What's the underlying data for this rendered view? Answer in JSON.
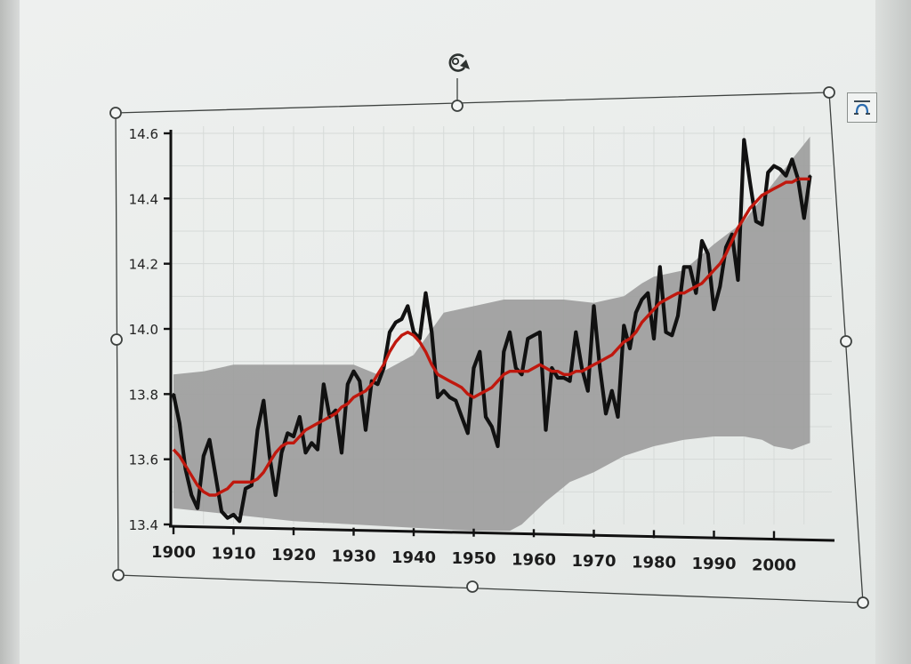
{
  "icons": {
    "rotate_handle": "rotate-icon",
    "layout_options": "layout-options-icon"
  },
  "colors": {
    "annual_series": "#111111",
    "smoothed_series": "#c0180e",
    "uncertainty_band": "#9c9c9c",
    "selection_frame": "#3d413f"
  },
  "chart_data": {
    "type": "line",
    "title": "",
    "xlabel": "",
    "ylabel": "",
    "xlim": [
      1900,
      2006
    ],
    "ylim": [
      13.4,
      14.6
    ],
    "grid": true,
    "legend": "none",
    "x_ticks": [
      "1900",
      "1910",
      "1920",
      "1930",
      "1940",
      "1950",
      "1960",
      "1970",
      "1980",
      "1990",
      "2000"
    ],
    "y_ticks": [
      "13.4",
      "13.6",
      "13.8",
      "14.0",
      "14.2",
      "14.4",
      "14.6"
    ],
    "x": [
      1900,
      1901,
      1902,
      1903,
      1904,
      1905,
      1906,
      1907,
      1908,
      1909,
      1910,
      1911,
      1912,
      1913,
      1914,
      1915,
      1916,
      1917,
      1918,
      1919,
      1920,
      1921,
      1922,
      1923,
      1924,
      1925,
      1926,
      1927,
      1928,
      1929,
      1930,
      1931,
      1932,
      1933,
      1934,
      1935,
      1936,
      1937,
      1938,
      1939,
      1940,
      1941,
      1942,
      1943,
      1944,
      1945,
      1946,
      1947,
      1948,
      1949,
      1950,
      1951,
      1952,
      1953,
      1954,
      1955,
      1956,
      1957,
      1958,
      1959,
      1960,
      1961,
      1962,
      1963,
      1964,
      1965,
      1966,
      1967,
      1968,
      1969,
      1970,
      1971,
      1972,
      1973,
      1974,
      1975,
      1976,
      1977,
      1978,
      1979,
      1980,
      1981,
      1982,
      1983,
      1984,
      1985,
      1986,
      1987,
      1988,
      1989,
      1990,
      1991,
      1992,
      1993,
      1994,
      1995,
      1996,
      1997,
      1998,
      1999,
      2000,
      2001,
      2002,
      2003,
      2004,
      2005,
      2006
    ],
    "series": [
      {
        "values": [
          13.8,
          13.71,
          13.57,
          13.49,
          13.45,
          13.61,
          13.66,
          13.55,
          13.44,
          13.42,
          13.43,
          13.41,
          13.51,
          13.52,
          13.69,
          13.78,
          13.61,
          13.49,
          13.62,
          13.68,
          13.67,
          13.73,
          13.62,
          13.65,
          13.63,
          13.83,
          13.73,
          13.75,
          13.62,
          13.83,
          13.87,
          13.84,
          13.69,
          13.84,
          13.83,
          13.88,
          13.99,
          14.02,
          14.03,
          14.07,
          13.99,
          13.97,
          14.11,
          13.99,
          13.79,
          13.81,
          13.79,
          13.78,
          13.73,
          13.68,
          13.88,
          13.93,
          13.73,
          13.7,
          13.64,
          13.93,
          13.99,
          13.88,
          13.86,
          13.97,
          13.98,
          13.99,
          13.69,
          13.88,
          13.85,
          13.85,
          13.84,
          13.99,
          13.88,
          13.81,
          14.07,
          13.88,
          13.74,
          13.81,
          13.73,
          14.01,
          13.94,
          14.05,
          14.09,
          14.11,
          13.97,
          14.19,
          13.99,
          13.98,
          14.04,
          14.19,
          14.19,
          14.11,
          14.27,
          14.23,
          14.06,
          14.13,
          14.25,
          14.29,
          14.15,
          14.58,
          14.45,
          14.33,
          14.32,
          14.48,
          14.5,
          14.49,
          14.47,
          14.52,
          14.46,
          14.34,
          14.47
        ]
      },
      {
        "values": [
          13.63,
          13.61,
          13.58,
          13.55,
          13.52,
          13.5,
          13.49,
          13.49,
          13.5,
          13.51,
          13.53,
          13.53,
          13.53,
          13.53,
          13.54,
          13.56,
          13.59,
          13.62,
          13.64,
          13.65,
          13.65,
          13.67,
          13.69,
          13.7,
          13.71,
          13.72,
          13.73,
          13.74,
          13.76,
          13.77,
          13.79,
          13.8,
          13.81,
          13.83,
          13.86,
          13.89,
          13.93,
          13.96,
          13.98,
          13.99,
          13.98,
          13.96,
          13.93,
          13.89,
          13.86,
          13.85,
          13.84,
          13.83,
          13.82,
          13.8,
          13.79,
          13.8,
          13.81,
          13.82,
          13.84,
          13.86,
          13.87,
          13.87,
          13.87,
          13.87,
          13.88,
          13.89,
          13.88,
          13.87,
          13.87,
          13.86,
          13.86,
          13.87,
          13.87,
          13.88,
          13.89,
          13.9,
          13.91,
          13.92,
          13.94,
          13.96,
          13.97,
          13.99,
          14.02,
          14.04,
          14.06,
          14.08,
          14.09,
          14.1,
          14.11,
          14.11,
          14.12,
          14.13,
          14.14,
          14.16,
          14.18,
          14.2,
          14.23,
          14.27,
          14.31,
          14.34,
          14.37,
          14.39,
          14.41,
          14.42,
          14.43,
          14.44,
          14.45,
          14.45,
          14.46,
          14.46,
          14.46
        ]
      }
    ],
    "band_upper": [
      [
        1900,
        13.86
      ],
      [
        1905,
        13.87
      ],
      [
        1910,
        13.89
      ],
      [
        1920,
        13.89
      ],
      [
        1930,
        13.89
      ],
      [
        1934,
        13.86
      ],
      [
        1940,
        13.92
      ],
      [
        1945,
        14.05
      ],
      [
        1955,
        14.09
      ],
      [
        1960,
        14.09
      ],
      [
        1965,
        14.09
      ],
      [
        1970,
        14.08
      ],
      [
        1975,
        14.1
      ],
      [
        1978,
        14.14
      ],
      [
        1980,
        14.16
      ],
      [
        1985,
        14.18
      ],
      [
        1990,
        14.26
      ],
      [
        1995,
        14.33
      ],
      [
        2000,
        14.45
      ],
      [
        2006,
        14.59
      ]
    ],
    "band_lower": [
      [
        1900,
        13.45
      ],
      [
        1910,
        13.43
      ],
      [
        1920,
        13.41
      ],
      [
        1930,
        13.4
      ],
      [
        1940,
        13.39
      ],
      [
        1950,
        13.38
      ],
      [
        1956,
        13.38
      ],
      [
        1958,
        13.4
      ],
      [
        1962,
        13.47
      ],
      [
        1966,
        13.53
      ],
      [
        1970,
        13.56
      ],
      [
        1975,
        13.61
      ],
      [
        1980,
        13.64
      ],
      [
        1985,
        13.66
      ],
      [
        1990,
        13.67
      ],
      [
        1995,
        13.67
      ],
      [
        1998,
        13.66
      ],
      [
        2000,
        13.64
      ],
      [
        2003,
        13.63
      ],
      [
        2006,
        13.65
      ]
    ]
  }
}
